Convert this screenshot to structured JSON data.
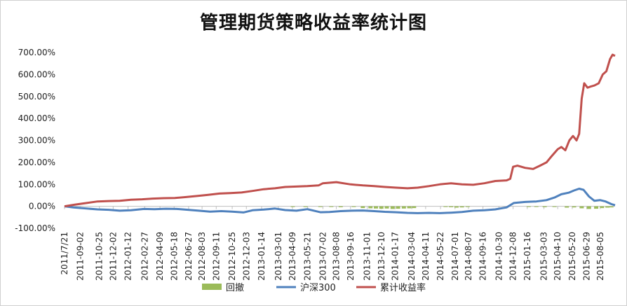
{
  "chart_data": {
    "type": "line",
    "title": "管理期货策略收益率统计图",
    "xlabel": "",
    "ylabel": "",
    "ylim": [
      -100,
      700
    ],
    "yticks": [
      "700.00%",
      "600.00%",
      "500.00%",
      "400.00%",
      "300.00%",
      "200.00%",
      "100.00%",
      "0.00%",
      "-100.00%"
    ],
    "ytick_values": [
      700,
      600,
      500,
      400,
      300,
      200,
      100,
      0,
      -100
    ],
    "xlim": [
      "2011-07-21",
      "2015-09-15"
    ],
    "xticks": [
      {
        "label": "2011/7/21",
        "date": "2011-07-21"
      },
      {
        "label": "2011-09-02",
        "date": "2011-09-02"
      },
      {
        "label": "2011-10-25",
        "date": "2011-10-25"
      },
      {
        "label": "2011-12-02",
        "date": "2011-12-02"
      },
      {
        "label": "2012-01-12",
        "date": "2012-01-12"
      },
      {
        "label": "2012-02-27",
        "date": "2012-02-27"
      },
      {
        "label": "2012-04-09",
        "date": "2012-04-09"
      },
      {
        "label": "2012-05-18",
        "date": "2012-05-18"
      },
      {
        "label": "2012-06-27",
        "date": "2012-06-27"
      },
      {
        "label": "2012-08-03",
        "date": "2012-08-03"
      },
      {
        "label": "2012-09-11",
        "date": "2012-09-11"
      },
      {
        "label": "2012-10-25",
        "date": "2012-10-25"
      },
      {
        "label": "2012-12-03",
        "date": "2012-12-03"
      },
      {
        "label": "2013-01-14",
        "date": "2013-01-14"
      },
      {
        "label": "2013-03-01",
        "date": "2013-03-01"
      },
      {
        "label": "2013-04-09",
        "date": "2013-04-09"
      },
      {
        "label": "2013-05-21",
        "date": "2013-05-21"
      },
      {
        "label": "2013-07-02",
        "date": "2013-07-02"
      },
      {
        "label": "2013-08-08",
        "date": "2013-08-08"
      },
      {
        "label": "2013-09-16",
        "date": "2013-09-16"
      },
      {
        "label": "2013-11-01",
        "date": "2013-11-01"
      },
      {
        "label": "2013-12-10",
        "date": "2013-12-10"
      },
      {
        "label": "2014-01-17",
        "date": "2014-01-17"
      },
      {
        "label": "2014-03-04",
        "date": "2014-03-04"
      },
      {
        "label": "2014-04-11",
        "date": "2014-04-11"
      },
      {
        "label": "2014-05-22",
        "date": "2014-05-22"
      },
      {
        "label": "2014-07-01",
        "date": "2014-07-01"
      },
      {
        "label": "2014-08-07",
        "date": "2014-08-07"
      },
      {
        "label": "2014-09-16",
        "date": "2014-09-16"
      },
      {
        "label": "2014-10-30",
        "date": "2014-10-30"
      },
      {
        "label": "2014-12-08",
        "date": "2014-12-08"
      },
      {
        "label": "2015-01-16",
        "date": "2015-01-16"
      },
      {
        "label": "2015-03-03",
        "date": "2015-03-03"
      },
      {
        "label": "2015-04-10",
        "date": "2015-04-10"
      },
      {
        "label": "2015-05-20",
        "date": "2015-05-20"
      },
      {
        "label": "2015-06-29",
        "date": "2015-06-29"
      },
      {
        "label": "2015-08-05",
        "date": "2015-08-05"
      }
    ],
    "legend": {
      "position": "bottom"
    },
    "grid": false,
    "series": [
      {
        "name": "回撤",
        "kind": "bar",
        "color": "#9bbb59",
        "dates": [
          "2013-04-10",
          "2013-05-15",
          "2013-06-25",
          "2013-07-25",
          "2013-08-20",
          "2013-09-25",
          "2013-10-20",
          "2013-11-10",
          "2013-11-25",
          "2013-12-10",
          "2013-12-25",
          "2014-01-10",
          "2014-01-25",
          "2014-02-10",
          "2014-02-25",
          "2014-03-10",
          "2014-06-05",
          "2014-06-20",
          "2014-07-05",
          "2014-07-20",
          "2014-08-05",
          "2015-01-20",
          "2015-02-10",
          "2015-03-05",
          "2015-04-01",
          "2015-05-05",
          "2015-05-25",
          "2015-06-15",
          "2015-07-05",
          "2015-07-25",
          "2015-08-10",
          "2015-08-25",
          "2015-09-05"
        ],
        "values": [
          -2,
          -3,
          -3,
          -2,
          -4,
          -3,
          -8,
          -9,
          -10,
          -11,
          -10,
          -12,
          -11,
          -10,
          -9,
          -8,
          -3,
          -4,
          -6,
          -5,
          -3,
          -2,
          -3,
          -4,
          -3,
          -6,
          -5,
          -9,
          -12,
          -11,
          -8,
          -6,
          -5
        ]
      },
      {
        "name": "沪深300",
        "kind": "line",
        "color": "#4f81bd",
        "dates": [
          "2011-07-21",
          "2011-08-15",
          "2011-09-20",
          "2011-10-20",
          "2011-11-20",
          "2011-12-20",
          "2012-01-20",
          "2012-02-25",
          "2012-03-25",
          "2012-04-25",
          "2012-05-25",
          "2012-06-25",
          "2012-07-25",
          "2012-08-25",
          "2012-09-25",
          "2012-10-25",
          "2012-11-25",
          "2012-12-20",
          "2013-01-20",
          "2013-02-20",
          "2013-03-20",
          "2013-04-20",
          "2013-05-20",
          "2013-06-25",
          "2013-07-20",
          "2013-08-20",
          "2013-09-20",
          "2013-10-20",
          "2013-11-20",
          "2013-12-20",
          "2014-01-20",
          "2014-02-20",
          "2014-03-20",
          "2014-04-20",
          "2014-05-20",
          "2014-06-20",
          "2014-07-20",
          "2014-08-20",
          "2014-09-20",
          "2014-10-20",
          "2014-11-20",
          "2014-12-10",
          "2015-01-10",
          "2015-02-10",
          "2015-03-10",
          "2015-04-01",
          "2015-04-20",
          "2015-05-10",
          "2015-05-25",
          "2015-06-08",
          "2015-06-20",
          "2015-07-05",
          "2015-07-20",
          "2015-08-05",
          "2015-08-20",
          "2015-09-05",
          "2015-09-15"
        ],
        "values": [
          0,
          -5,
          -10,
          -14,
          -16,
          -20,
          -18,
          -12,
          -13,
          -11,
          -12,
          -16,
          -20,
          -24,
          -22,
          -24,
          -28,
          -18,
          -15,
          -10,
          -17,
          -20,
          -13,
          -27,
          -26,
          -22,
          -20,
          -19,
          -22,
          -25,
          -27,
          -30,
          -31,
          -30,
          -31,
          -29,
          -26,
          -20,
          -18,
          -14,
          -5,
          15,
          20,
          22,
          28,
          40,
          55,
          62,
          72,
          80,
          75,
          45,
          25,
          28,
          22,
          10,
          5
        ]
      },
      {
        "name": "累计收益率",
        "kind": "line",
        "color": "#c0504d",
        "dates": [
          "2011-07-21",
          "2011-08-20",
          "2011-09-20",
          "2011-10-20",
          "2011-11-20",
          "2011-12-20",
          "2012-01-20",
          "2012-02-20",
          "2012-03-20",
          "2012-04-20",
          "2012-05-20",
          "2012-06-20",
          "2012-07-20",
          "2012-08-20",
          "2012-09-20",
          "2012-10-20",
          "2012-11-20",
          "2012-12-20",
          "2013-01-20",
          "2013-02-20",
          "2013-03-20",
          "2013-04-20",
          "2013-05-20",
          "2013-06-20",
          "2013-07-02",
          "2013-08-08",
          "2013-09-16",
          "2013-10-20",
          "2013-11-20",
          "2013-12-20",
          "2014-01-20",
          "2014-02-20",
          "2014-03-20",
          "2014-04-20",
          "2014-05-20",
          "2014-06-20",
          "2014-07-20",
          "2014-08-20",
          "2014-09-20",
          "2014-10-20",
          "2014-11-20",
          "2014-11-30",
          "2014-12-08",
          "2014-12-20",
          "2015-01-10",
          "2015-02-01",
          "2015-02-20",
          "2015-03-10",
          "2015-03-25",
          "2015-04-10",
          "2015-04-20",
          "2015-05-01",
          "2015-05-12",
          "2015-05-22",
          "2015-06-01",
          "2015-06-08",
          "2015-06-15",
          "2015-06-22",
          "2015-07-01",
          "2015-07-10",
          "2015-07-20",
          "2015-08-01",
          "2015-08-12",
          "2015-08-22",
          "2015-09-01",
          "2015-09-08",
          "2015-09-15"
        ],
        "values": [
          0,
          8,
          15,
          22,
          24,
          25,
          30,
          32,
          35,
          37,
          38,
          42,
          47,
          52,
          58,
          60,
          63,
          70,
          78,
          82,
          88,
          90,
          92,
          95,
          105,
          110,
          100,
          95,
          92,
          88,
          85,
          82,
          85,
          92,
          100,
          105,
          100,
          98,
          105,
          115,
          118,
          125,
          180,
          185,
          175,
          170,
          185,
          200,
          230,
          260,
          270,
          255,
          300,
          320,
          300,
          330,
          490,
          560,
          540,
          545,
          550,
          560,
          600,
          615,
          670,
          690,
          685
        ]
      }
    ]
  }
}
